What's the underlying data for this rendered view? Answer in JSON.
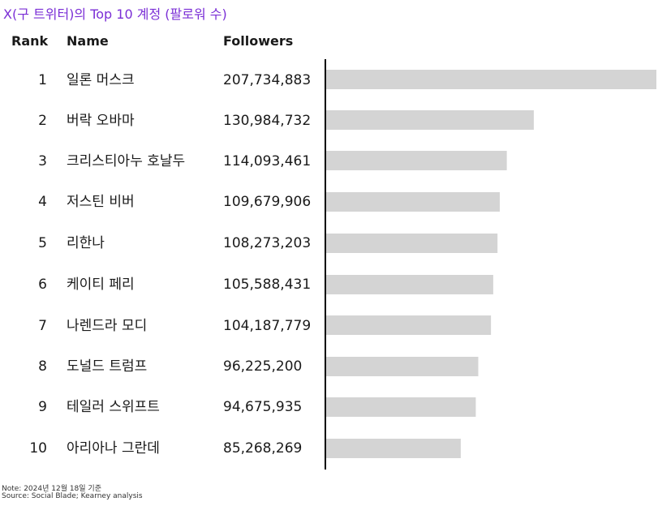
{
  "title": "X(구 트위터)의 Top 10 계정 (팔로워 수)",
  "headers": {
    "rank": "Rank",
    "name": "Name",
    "followers": "Followers"
  },
  "colors": {
    "title": "#7b2fd6",
    "bar": "#d4d4d4",
    "bar_outline": "#ffffff",
    "axis": "#000000"
  },
  "chart_data": {
    "type": "bar",
    "orientation": "horizontal",
    "title": "X(구 트위터)의 Top 10 계정 (팔로워 수)",
    "categories": [
      "일론 머스크",
      "버락 오바마",
      "크리스티아누 호날두",
      "저스틴 비버",
      "리한나",
      "케이티 페리",
      "나렌드라 모디",
      "도널드 트럼프",
      "테일러 스위프트",
      "아리아나 그란데"
    ],
    "values": [
      207734883,
      130984732,
      114093461,
      109679906,
      108273203,
      105588431,
      104187779,
      96225200,
      94675935,
      85268269
    ],
    "xlim": [
      0,
      207734883
    ],
    "grid": false
  },
  "rows": [
    {
      "rank": "1",
      "name": "일론 머스크",
      "followers": "207,734,883"
    },
    {
      "rank": "2",
      "name": "버락 오바마",
      "followers": "130,984,732"
    },
    {
      "rank": "3",
      "name": "크리스티아누 호날두",
      "followers": "114,093,461"
    },
    {
      "rank": "4",
      "name": "저스틴 비버",
      "followers": "109,679,906"
    },
    {
      "rank": "5",
      "name": "리한나",
      "followers": "108,273,203"
    },
    {
      "rank": "6",
      "name": "케이티 페리",
      "followers": "105,588,431"
    },
    {
      "rank": "7",
      "name": "나렌드라 모디",
      "followers": "104,187,779"
    },
    {
      "rank": "8",
      "name": "도널드 트럼프",
      "followers": "96,225,200"
    },
    {
      "rank": "9",
      "name": "테일러 스위프트",
      "followers": "94,675,935"
    },
    {
      "rank": "10",
      "name": "아리아나 그란데",
      "followers": "85,268,269"
    }
  ],
  "footnotes": {
    "note": "Note: 2024년 12월 18일 기준",
    "source": "Source: Social Blade; Kearney analysis"
  }
}
